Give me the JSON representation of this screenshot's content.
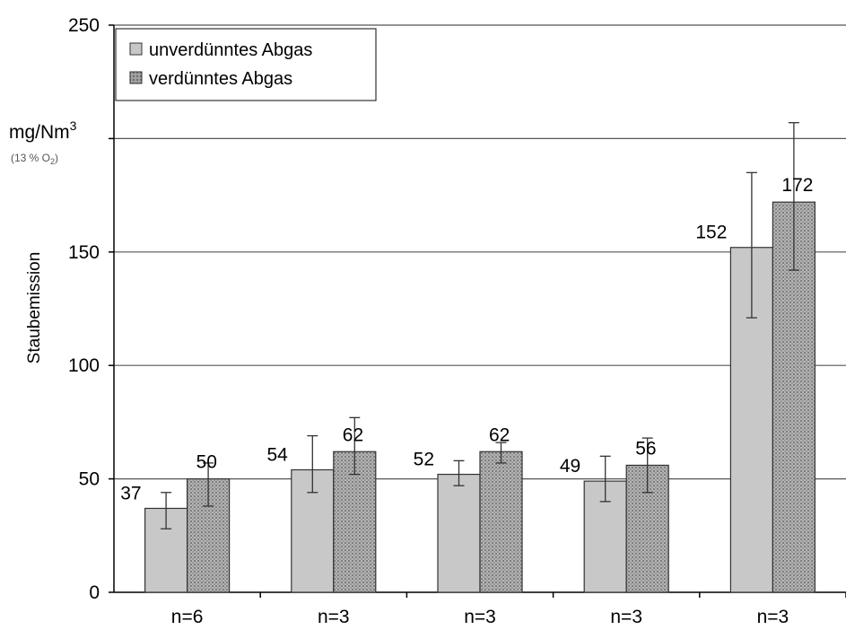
{
  "chart_data": {
    "type": "bar",
    "title": "",
    "ylabel": "Staubemission",
    "unit": {
      "main": "mg/Nm",
      "sup": "3",
      "sub_prefix": "(13 % O",
      "sub_index": "2",
      "sub_suffix": ")"
    },
    "categories": [
      "n=6",
      "n=3",
      "n=3",
      "n=3",
      "n=3"
    ],
    "ylim": [
      0,
      250
    ],
    "yticks": [
      0,
      50,
      100,
      150,
      200,
      250
    ],
    "ytick_labels": [
      "0",
      "50",
      "100",
      "150",
      "",
      "250"
    ],
    "grid": true,
    "legend_position": "top-left",
    "series": [
      {
        "name": "unverdünntes Abgas",
        "values": [
          37,
          54,
          52,
          49,
          152
        ],
        "labels": [
          "37",
          "54",
          "52",
          "49",
          "152"
        ],
        "error_low": [
          28,
          44,
          47,
          40,
          121
        ],
        "error_high": [
          44,
          69,
          58,
          60,
          185
        ],
        "color": "#c8c8c8",
        "pattern": "solid"
      },
      {
        "name": "verdünntes Abgas",
        "values": [
          50,
          62,
          62,
          56,
          172
        ],
        "labels": [
          "50",
          "62",
          "62",
          "56",
          "172"
        ],
        "error_low": [
          38,
          52,
          57,
          44,
          142
        ],
        "error_high": [
          57,
          77,
          66,
          68,
          207
        ],
        "color": "#a8a8a8",
        "pattern": "dotted"
      }
    ]
  }
}
